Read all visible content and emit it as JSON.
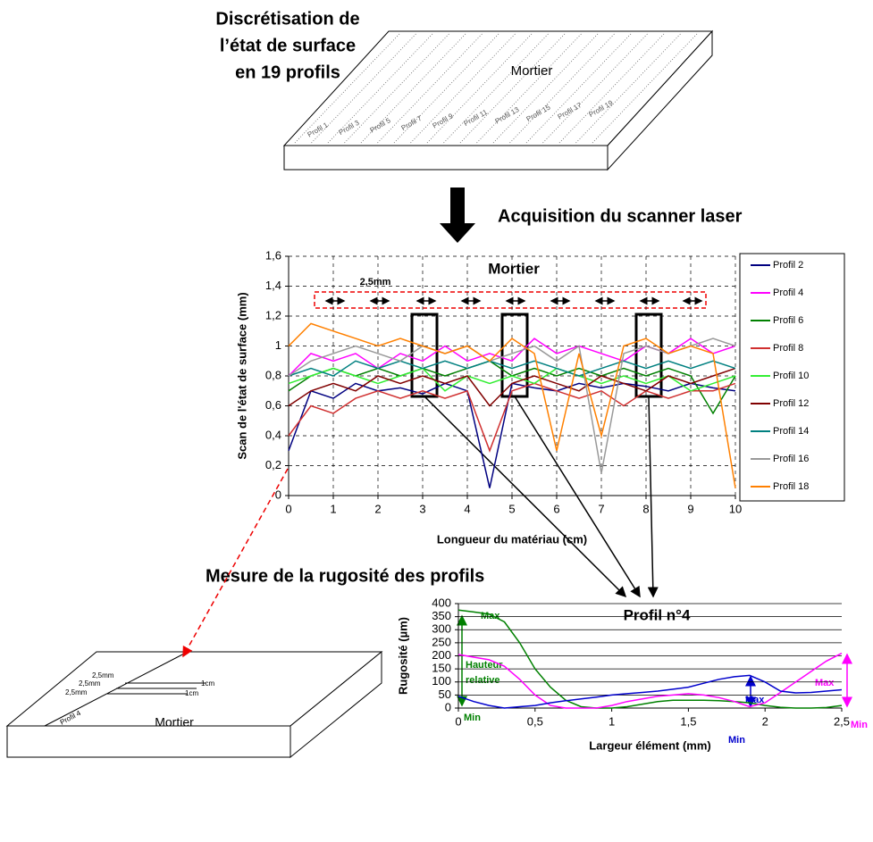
{
  "texts": {
    "heading": [
      "Discrétisation de",
      "l’état de surface",
      "en 19 profils"
    ],
    "slab_top_label": "Mortier",
    "profile_labels": [
      "Profil 1",
      "Profil 3",
      "Profil 5",
      "Profil 7",
      "Profil 9",
      "Profil 11",
      "Profil 13",
      "Profil 15",
      "Profil 17",
      "Profil 19"
    ],
    "acquisition": "Acquisition du scanner laser",
    "measure": "Mesure de la rugosité des profils",
    "slab_bottom": {
      "dims": [
        "2,5mm",
        "2,5mm",
        "2,5mm",
        "1cm",
        "1cm"
      ],
      "profile": "Profil 4",
      "label": "Mortier"
    }
  },
  "chart_data": [
    {
      "type": "line",
      "title": "Mortier",
      "xlabel": "Longueur du matériau (cm)",
      "ylabel": "Scan de l'état de surface (mm)",
      "annotations": [
        "2,5mm"
      ],
      "x": [
        0,
        0.5,
        1,
        1.5,
        2,
        2.5,
        3,
        3.5,
        4,
        4.5,
        5,
        5.5,
        6,
        6.5,
        7,
        7.5,
        8,
        8.5,
        9,
        9.5,
        10
      ],
      "xlim": [
        0,
        10
      ],
      "xticks": [
        0,
        1,
        2,
        3,
        4,
        5,
        6,
        7,
        8,
        9,
        10
      ],
      "ylim": [
        0,
        1.6
      ],
      "yticks": [
        0,
        {
          "value": 0.2,
          "label": "0,2"
        },
        {
          "value": 0.4,
          "label": "0,4"
        },
        {
          "value": 0.6,
          "label": "0,6"
        },
        {
          "value": 0.8,
          "label": "0,8"
        },
        1,
        {
          "value": 1.2,
          "label": "1,2"
        },
        {
          "value": 1.4,
          "label": "1,4"
        },
        {
          "value": 1.6,
          "label": "1,6"
        }
      ],
      "grid": true,
      "grid_dashed": true,
      "xgrid": true,
      "legend": "right",
      "series": [
        {
          "name": "Profil 2",
          "color": "#000080",
          "values": [
            0.3,
            0.7,
            0.65,
            0.75,
            0.7,
            0.72,
            0.68,
            0.75,
            0.7,
            0.05,
            0.75,
            0.72,
            0.7,
            0.75,
            0.72,
            0.75,
            0.73,
            0.7,
            0.75,
            0.72,
            0.7
          ]
        },
        {
          "name": "Profil 4",
          "color": "#ff00ff",
          "values": [
            0.8,
            0.95,
            0.9,
            0.95,
            0.85,
            0.95,
            0.9,
            1.0,
            0.9,
            0.95,
            0.9,
            1.05,
            0.95,
            1.0,
            0.95,
            0.9,
            1.0,
            0.95,
            1.05,
            0.95,
            1.0
          ]
        },
        {
          "name": "Profil 6",
          "color": "#008000",
          "values": [
            0.7,
            0.8,
            0.85,
            0.8,
            0.85,
            0.8,
            0.85,
            0.8,
            0.85,
            0.9,
            0.8,
            0.85,
            0.8,
            0.85,
            0.8,
            0.85,
            0.8,
            0.85,
            0.8,
            0.55,
            0.8
          ]
        },
        {
          "name": "Profil 8",
          "color": "#d03030",
          "values": [
            0.4,
            0.6,
            0.55,
            0.65,
            0.7,
            0.65,
            0.7,
            0.65,
            0.7,
            0.3,
            0.7,
            0.75,
            0.7,
            0.65,
            0.7,
            0.6,
            0.7,
            0.65,
            0.7,
            0.7,
            0.75
          ]
        },
        {
          "name": "Profil 10",
          "color": "#33ee33",
          "values": [
            0.75,
            0.8,
            0.85,
            0.8,
            0.75,
            0.8,
            0.85,
            0.7,
            0.8,
            0.75,
            0.8,
            0.75,
            0.85,
            0.8,
            0.75,
            0.8,
            0.75,
            0.8,
            0.7,
            0.75,
            0.8
          ]
        },
        {
          "name": "Profil 12",
          "color": "#800000",
          "values": [
            0.6,
            0.7,
            0.75,
            0.7,
            0.8,
            0.75,
            0.8,
            0.75,
            0.8,
            0.6,
            0.75,
            0.8,
            0.75,
            0.7,
            0.8,
            0.75,
            0.7,
            0.8,
            0.75,
            0.8,
            0.85
          ]
        },
        {
          "name": "Profil 14",
          "color": "#008080",
          "values": [
            0.8,
            0.85,
            0.8,
            0.9,
            0.85,
            0.9,
            0.85,
            0.9,
            0.85,
            0.9,
            0.85,
            0.9,
            0.85,
            0.8,
            0.85,
            0.9,
            0.85,
            0.9,
            0.85,
            0.9,
            0.85
          ]
        },
        {
          "name": "Profil 16",
          "color": "#999999",
          "values": [
            0.8,
            0.9,
            0.95,
            1.0,
            0.95,
            0.9,
            1.0,
            0.95,
            1.0,
            0.9,
            0.95,
            1.0,
            0.9,
            1.0,
            0.15,
            0.95,
            1.0,
            0.95,
            1.0,
            1.05,
            1.0
          ]
        },
        {
          "name": "Profil 18",
          "color": "#ff8000",
          "values": [
            1.0,
            1.15,
            1.1,
            1.05,
            1.0,
            1.05,
            1.0,
            0.95,
            1.0,
            0.9,
            1.05,
            0.95,
            0.3,
            0.95,
            0.4,
            1.0,
            1.05,
            0.95,
            1.0,
            0.95,
            0.05
          ]
        }
      ]
    },
    {
      "type": "line",
      "title": "Profil n°4",
      "xlabel": "Largeur élément (mm)",
      "ylabel": "Rugosité (µm)",
      "annotations": [
        "Max",
        "Hauteur",
        "relative",
        "Min",
        "Max",
        "Min",
        "Max",
        "Min"
      ],
      "x": [
        0,
        0.1,
        0.2,
        0.3,
        0.4,
        0.5,
        0.6,
        0.7,
        0.8,
        0.9,
        1,
        1.1,
        1.2,
        1.3,
        1.4,
        1.5,
        1.6,
        1.7,
        1.8,
        1.9,
        2,
        2.1,
        2.2,
        2.3,
        2.4,
        2.5
      ],
      "xlim": [
        0,
        2.5
      ],
      "xticks": [
        0,
        {
          "value": 0.5,
          "label": "0,5"
        },
        1,
        {
          "value": 1.5,
          "label": "1,5"
        },
        2,
        {
          "value": 2.5,
          "label": "2,5"
        }
      ],
      "ylim": [
        0,
        400
      ],
      "yticks": [
        0,
        50,
        100,
        150,
        200,
        250,
        300,
        350,
        400
      ],
      "grid": true,
      "grid_dashed": false,
      "xgrid": false,
      "series": [
        {
          "color": "#008000",
          "values": [
            375,
            368,
            360,
            330,
            250,
            150,
            80,
            30,
            5,
            0,
            0,
            5,
            15,
            25,
            30,
            30,
            30,
            28,
            25,
            20,
            10,
            3,
            0,
            0,
            2,
            10
          ]
        },
        {
          "color": "#ff00ff",
          "values": [
            205,
            195,
            185,
            160,
            110,
            50,
            10,
            0,
            0,
            0,
            10,
            25,
            35,
            45,
            50,
            55,
            50,
            40,
            25,
            5,
            20,
            60,
            100,
            140,
            180,
            210
          ]
        },
        {
          "color": "#0000cc",
          "values": [
            45,
            25,
            10,
            0,
            5,
            10,
            20,
            28,
            35,
            42,
            50,
            55,
            60,
            65,
            72,
            80,
            95,
            110,
            120,
            125,
            100,
            65,
            58,
            60,
            65,
            70
          ]
        }
      ]
    }
  ]
}
